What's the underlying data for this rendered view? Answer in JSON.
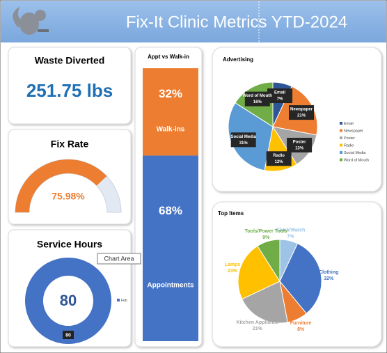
{
  "header": {
    "title": "Fix-It Clinic Metrics YTD-2024"
  },
  "tooltip": "Chart Area",
  "chart_data": [
    {
      "type": "kpi",
      "title": "Waste Diverted",
      "values": [
        251.75
      ],
      "value_labels": [
        "251.75 lbs"
      ],
      "color": "#1f6fb5"
    },
    {
      "type": "gauge",
      "title": "Fix Rate",
      "values": [
        75.98
      ],
      "value_labels": [
        "75.98%"
      ],
      "color": "#ed7d31",
      "track_color": "#e3e9f2"
    },
    {
      "type": "doughnut",
      "title": "Service Hours",
      "categories": [
        "Feb"
      ],
      "values": [
        80
      ],
      "color": "#4472c4"
    },
    {
      "type": "stacked_bar",
      "title": "Appt vs Walk-in",
      "series": [
        {
          "name": "Appointments",
          "color": "#4472c4",
          "values": [
            68
          ],
          "value_labels": [
            "68%"
          ]
        },
        {
          "name": "Walk-ins",
          "color": "#ed7d31",
          "values": [
            32
          ],
          "value_labels": [
            "32%"
          ]
        }
      ]
    },
    {
      "type": "pie",
      "title": "Advertising",
      "categories": [
        "Email",
        "Newspaper",
        "Poster",
        "Radio",
        "Social Media",
        "Word of Mouth"
      ],
      "values": [
        7,
        21,
        13,
        12,
        31,
        16
      ],
      "value_labels": [
        "7%",
        "21%",
        "13%",
        "12%",
        "31%",
        "16%"
      ],
      "colors": [
        "#2f5597",
        "#ed7d31",
        "#a5a5a5",
        "#ffc000",
        "#5b9bd5",
        "#70ad47"
      ],
      "legend": "right",
      "label_style": "boxed"
    },
    {
      "type": "pie",
      "title": "Top Items",
      "categories": [
        "Clock/Watch",
        "Clothing",
        "Furniture",
        "Kitchen Appliance",
        "Lamps",
        "Tools/Power Tools"
      ],
      "values": [
        7,
        32,
        8,
        21,
        23,
        9
      ],
      "value_labels": [
        "7%",
        "32%",
        "8%",
        "21%",
        "23%",
        "9%"
      ],
      "colors": [
        "#9dc3e6",
        "#4472c4",
        "#ed7d31",
        "#a5a5a5",
        "#ffc000",
        "#70ad47"
      ],
      "label_style": "colored"
    }
  ]
}
